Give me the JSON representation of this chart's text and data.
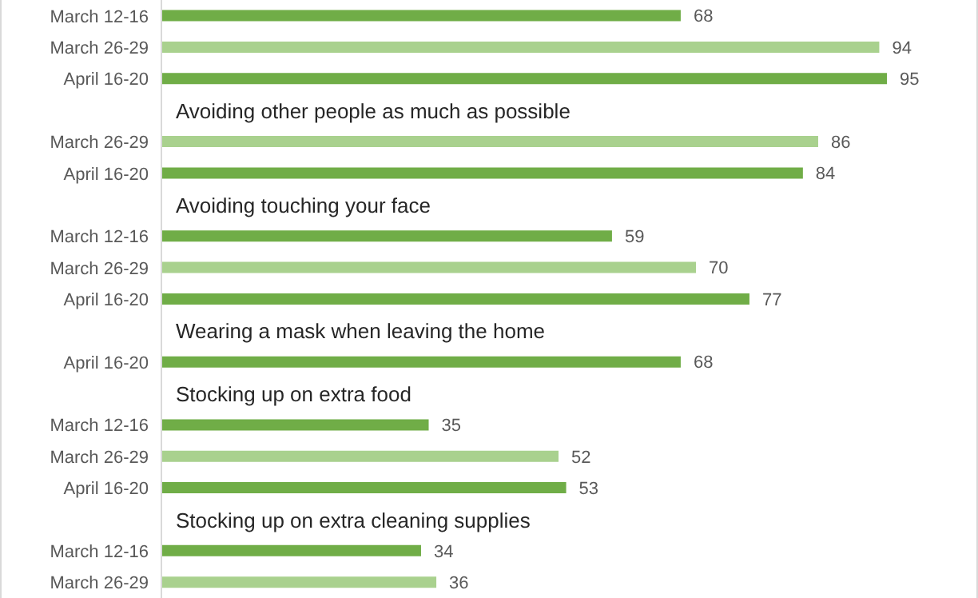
{
  "chart_data": {
    "type": "bar",
    "orientation": "horizontal",
    "data_labels": true,
    "categories": [
      "March 12-16",
      "March 26-29",
      "April 16-20",
      "Avoiding other people as much as possible",
      "March 26-29",
      "April 16-20",
      "Avoiding touching your face",
      "March 12-16",
      "March 26-29",
      "April 16-20",
      "Wearing a mask when leaving the home",
      "April 16-20",
      "Stocking up on extra food",
      "March 12-16",
      "March 26-29",
      "April 16-20",
      "Stocking up on extra cleaning supplies",
      "March 12-16",
      "March 26-29"
    ],
    "values": [
      68,
      94,
      95,
      null,
      86,
      84,
      null,
      59,
      70,
      77,
      null,
      68,
      null,
      35,
      52,
      53,
      null,
      34,
      36
    ],
    "colors": [
      "#70ad47",
      "#a9d18e",
      "#70ad47",
      null,
      "#a9d18e",
      "#70ad47",
      null,
      "#70ad47",
      "#a9d18e",
      "#70ad47",
      null,
      "#70ad47",
      null,
      "#70ad47",
      "#a9d18e",
      "#70ad47",
      null,
      "#70ad47",
      "#a9d18e"
    ]
  }
}
